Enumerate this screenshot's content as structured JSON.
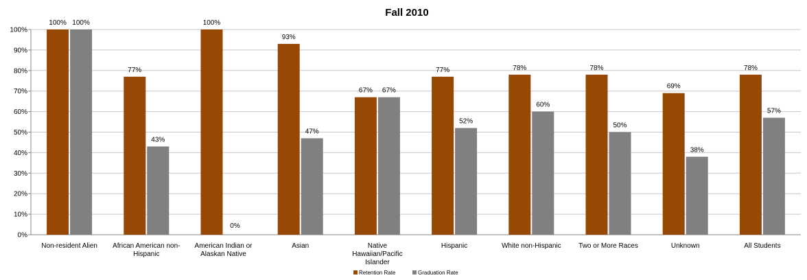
{
  "chart_data": {
    "type": "bar",
    "title": "Fall 2010",
    "categories": [
      [
        "Non-resident  Alien"
      ],
      [
        "African American non-",
        "Hispanic"
      ],
      [
        "American Indian or",
        "Alaskan Native"
      ],
      [
        "Asian"
      ],
      [
        "Native",
        "Hawaiian/Pacific",
        "Islander"
      ],
      [
        "Hispanic"
      ],
      [
        "White non-Hispanic"
      ],
      [
        "Two or More Races"
      ],
      [
        "Unknown"
      ],
      [
        "All Students"
      ]
    ],
    "series": [
      {
        "name": "Retention Rate",
        "color": "#974706",
        "values": [
          100,
          77,
          100,
          93,
          67,
          77,
          78,
          78,
          69,
          78
        ],
        "labels": [
          "100%",
          "77%",
          "100%",
          "93%",
          "67%",
          "77%",
          "78%",
          "78%",
          "69%",
          "78%"
        ]
      },
      {
        "name": "Graduation Rate",
        "color": "#808080",
        "values": [
          100,
          43,
          0,
          47,
          67,
          52,
          60,
          50,
          38,
          57
        ],
        "labels": [
          "100%",
          "43%",
          "0%",
          "47%",
          "67%",
          "52%",
          "60%",
          "50%",
          "38%",
          "57%"
        ]
      }
    ],
    "ylim": [
      0,
      100
    ],
    "yticks": [
      "0%",
      "10%",
      "20%",
      "30%",
      "40%",
      "50%",
      "60%",
      "70%",
      "80%",
      "90%",
      "100%"
    ],
    "grid": true,
    "legend_position": "bottom"
  }
}
